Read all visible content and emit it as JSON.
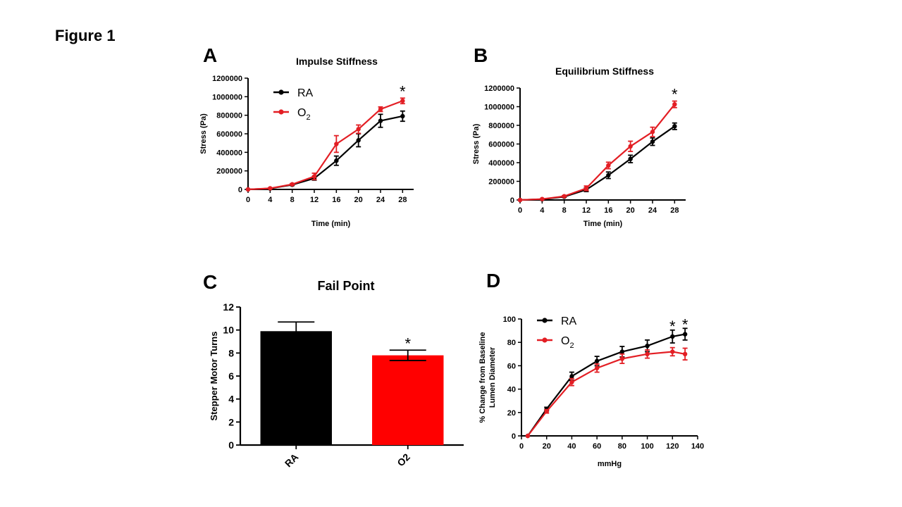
{
  "figure_label": "Figure 1",
  "chart_data": [
    {
      "panel": "A",
      "type": "line",
      "title": "Impulse Stiffness",
      "xlabel": "Time (min)",
      "ylabel": "Stress (Pa)",
      "x": [
        0,
        4,
        8,
        12,
        16,
        20,
        24,
        28
      ],
      "x_ticks": [
        0,
        4,
        8,
        12,
        16,
        20,
        24,
        28
      ],
      "xlim": [
        0,
        30
      ],
      "ylim": [
        0,
        1200000
      ],
      "y_ticks": [
        0,
        200000,
        400000,
        600000,
        800000,
        1000000,
        1200000
      ],
      "series": [
        {
          "name": "RA",
          "color": "#000000",
          "values": [
            0,
            10000,
            50000,
            120000,
            310000,
            530000,
            740000,
            790000
          ],
          "errors": [
            0,
            3000,
            8000,
            20000,
            50000,
            70000,
            70000,
            55000
          ]
        },
        {
          "name": "O2",
          "color": "#e31e24",
          "values": [
            0,
            12000,
            55000,
            140000,
            490000,
            650000,
            865000,
            955000
          ],
          "errors": [
            0,
            3000,
            8000,
            35000,
            90000,
            45000,
            25000,
            30000
          ]
        }
      ],
      "legend": "top-left",
      "legend_labels": [
        "RA",
        "O",
        "2"
      ],
      "annotations": [
        {
          "text": "*",
          "x": 28
        }
      ]
    },
    {
      "panel": "B",
      "type": "line",
      "title": "Equilibrium Stiffness",
      "xlabel": "Time (min)",
      "ylabel": "Stress (Pa)",
      "x": [
        0,
        4,
        8,
        12,
        16,
        20,
        24,
        28
      ],
      "x_ticks": [
        0,
        4,
        8,
        12,
        16,
        20,
        24,
        28
      ],
      "xlim": [
        0,
        30
      ],
      "ylim": [
        0,
        1200000
      ],
      "y_ticks": [
        0,
        200000,
        400000,
        600000,
        800000,
        1000000,
        1200000
      ],
      "series": [
        {
          "name": "RA",
          "color": "#000000",
          "values": [
            0,
            8000,
            35000,
            110000,
            265000,
            440000,
            625000,
            790000
          ],
          "errors": [
            0,
            2000,
            6000,
            20000,
            35000,
            40000,
            40000,
            35000
          ]
        },
        {
          "name": "O2",
          "color": "#e31e24",
          "values": [
            0,
            10000,
            40000,
            125000,
            370000,
            575000,
            730000,
            1025000
          ],
          "errors": [
            0,
            2000,
            6000,
            25000,
            35000,
            55000,
            50000,
            35000
          ]
        }
      ],
      "annotations": [
        {
          "text": "*",
          "x": 28
        }
      ]
    },
    {
      "panel": "C",
      "type": "bar",
      "title": "Fail Point",
      "xlabel": "",
      "ylabel": "Stepper Motor Turns",
      "categories": [
        "RA",
        "O2"
      ],
      "values": [
        9.9,
        7.8
      ],
      "errors": [
        0.8,
        0.45
      ],
      "colors": [
        "#000000",
        "#ff0000"
      ],
      "ylim": [
        0,
        12
      ],
      "y_ticks": [
        0,
        2,
        4,
        6,
        8,
        10,
        12
      ],
      "annotations": [
        {
          "text": "*",
          "category": "O2"
        }
      ]
    },
    {
      "panel": "D",
      "type": "line",
      "title": "",
      "xlabel": "mmHg",
      "ylabel": "% Change from Baseline Lumen Diameter",
      "ylabel_lines": [
        "% Change from Baseline",
        "Lumen Diameter"
      ],
      "x": [
        5,
        20,
        40,
        60,
        80,
        100,
        120,
        130
      ],
      "x_ticks": [
        0,
        20,
        40,
        60,
        80,
        100,
        120,
        140
      ],
      "xlim": [
        0,
        140
      ],
      "ylim": [
        0,
        100
      ],
      "y_ticks": [
        0,
        20,
        40,
        60,
        80,
        100
      ],
      "series": [
        {
          "name": "RA",
          "color": "#000000",
          "values": [
            0,
            23,
            51,
            64,
            72,
            77,
            85,
            87
          ],
          "errors": [
            0,
            1.5,
            3.5,
            4,
            4.5,
            5,
            5.5,
            5
          ]
        },
        {
          "name": "O2",
          "color": "#e31e24",
          "values": [
            0,
            21,
            46,
            58,
            66,
            70,
            72,
            70
          ],
          "errors": [
            0,
            1.5,
            3,
            3.5,
            4,
            3.5,
            3.5,
            5
          ]
        }
      ],
      "legend": "top-left",
      "legend_labels": [
        "RA",
        "O",
        "2"
      ],
      "annotations": [
        {
          "text": "*",
          "x": 120
        },
        {
          "text": "*",
          "x": 130
        }
      ]
    }
  ]
}
